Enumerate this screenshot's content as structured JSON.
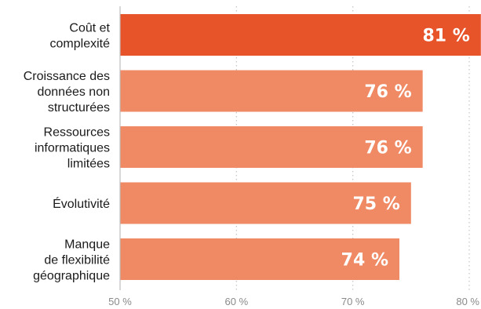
{
  "chart_data": {
    "type": "bar",
    "orientation": "horizontal",
    "categories": [
      [
        "Coût et",
        "complexité"
      ],
      [
        "Croissance des",
        "données non",
        "structurées"
      ],
      [
        "Ressources",
        "informatiques",
        "limitées"
      ],
      [
        "Évolutivité"
      ],
      [
        "Manque",
        "de flexibilité",
        "géographique"
      ]
    ],
    "values": [
      81,
      76,
      76,
      75,
      74
    ],
    "value_labels": [
      "81 %",
      "76 %",
      "76 %",
      "75 %",
      "74 %"
    ],
    "xlim": [
      50,
      80
    ],
    "x_ticks": [
      50,
      60,
      70,
      80
    ],
    "x_tick_labels": [
      "50 %",
      "60 %",
      "70 %",
      "80 %"
    ],
    "grid": "vertical dotted",
    "highlight_index": 0,
    "colors": {
      "highlight": "#e8542a",
      "bar": "#f08a65",
      "grid": "#c8c8c8",
      "axis": "#bdbdbd",
      "tick_text": "#8a8a8a",
      "value_text": "#ffffff"
    }
  }
}
